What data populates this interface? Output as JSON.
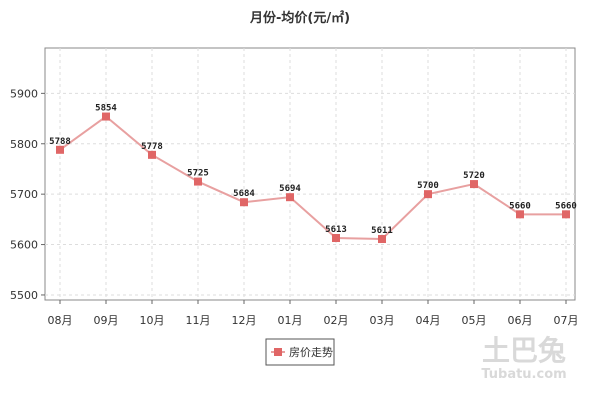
{
  "chart_data": {
    "type": "line",
    "title": "月份-均价(元/㎡)",
    "categories": [
      "08月",
      "09月",
      "10月",
      "11月",
      "12月",
      "01月",
      "02月",
      "03月",
      "04月",
      "05月",
      "06月",
      "07月"
    ],
    "series": [
      {
        "name": "房价走势",
        "values": [
          5788,
          5854,
          5778,
          5725,
          5684,
          5694,
          5613,
          5611,
          5700,
          5720,
          5660,
          5660
        ],
        "data_labels": [
          "5788",
          "5854",
          "5778",
          "5725",
          "5684",
          "5694",
          "5613",
          "5611",
          "5700",
          "5720",
          "5660",
          "5660"
        ],
        "color": "#e06666",
        "line_color": "#e8a0a0"
      }
    ],
    "y_ticks": [
      "5500",
      "5600",
      "5700",
      "5800",
      "5900"
    ],
    "ylim": [
      5490,
      5990
    ],
    "grid": true,
    "legend_position": "bottom-center"
  },
  "watermark": {
    "cn": "土巴兔",
    "en": "Tubatu.com"
  }
}
